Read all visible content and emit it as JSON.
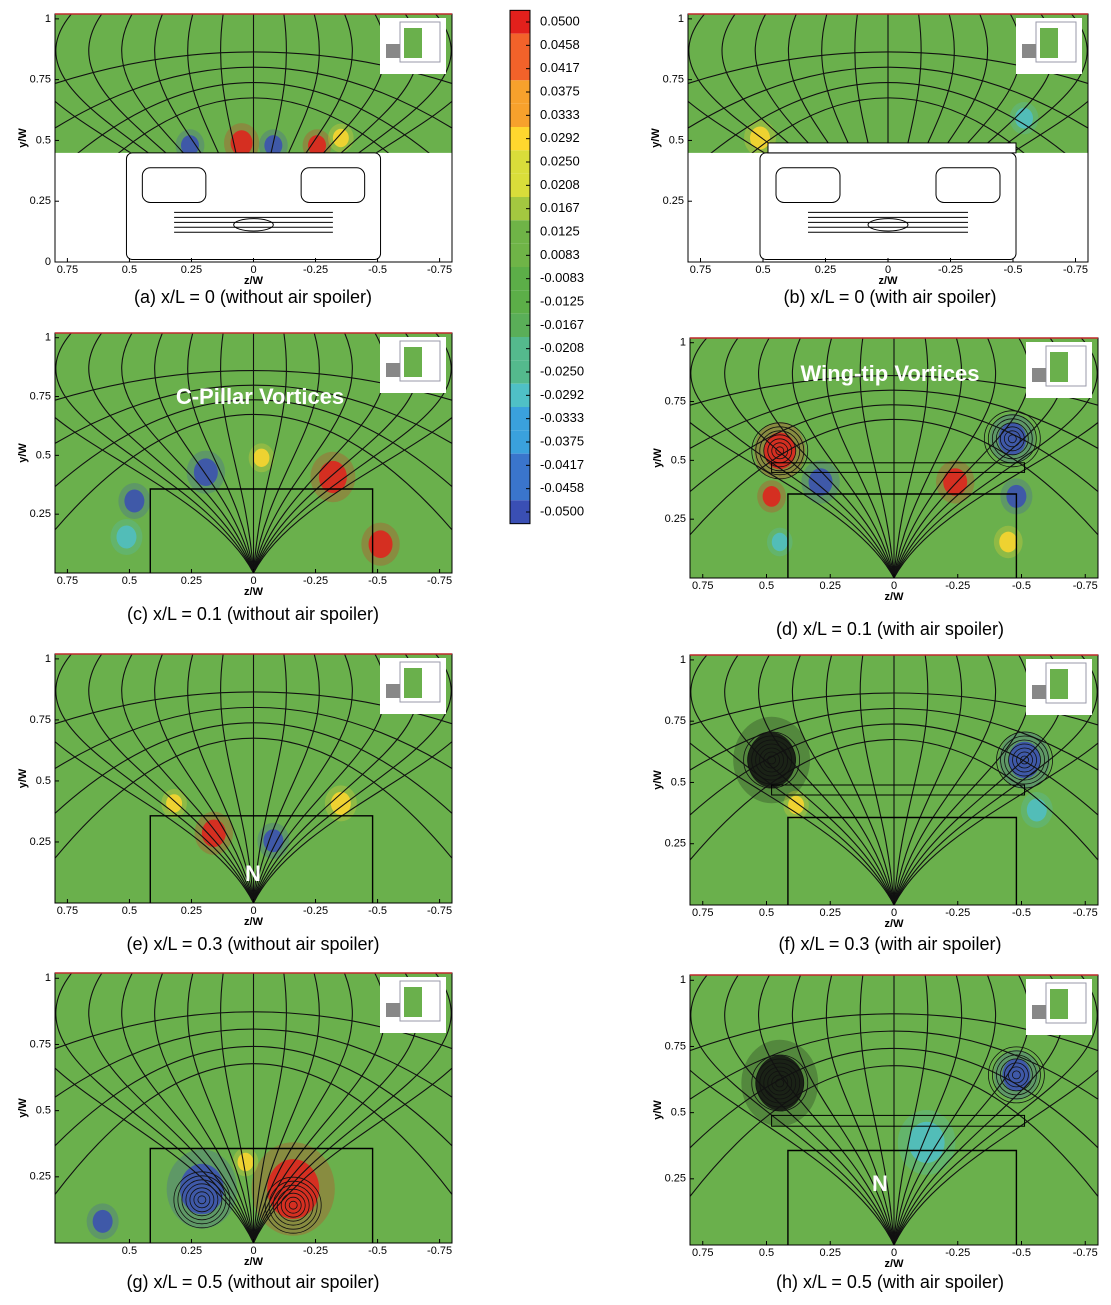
{
  "colorbar": {
    "levels": [
      {
        "value": 0.05,
        "label": "0.0500"
      },
      0.0458,
      0.0417,
      0.0375,
      0.0333,
      0.0292,
      {
        "value": 0.025,
        "label": "0.0250"
      },
      0.0208,
      0.0167,
      0.0125,
      0.0083,
      -0.0083,
      -0.0125,
      -0.0167,
      -0.0208,
      {
        "value": -0.025,
        "label": "-0.0250"
      },
      -0.0292,
      -0.0333,
      -0.0375,
      -0.0417,
      -0.0458,
      {
        "value": -0.05,
        "label": "-0.0500"
      }
    ],
    "colormap": [
      "#e2201c",
      "#f2622a",
      "#f7a12c",
      "#ffd72e",
      "#d9dd3a",
      "#a3c840",
      "#6fb447",
      "#5cae48",
      "#5aae58",
      "#54b98d",
      "#4fc0c6",
      "#3aa1dd",
      "#3a75cc",
      "#3a4fb4"
    ]
  },
  "panels": [
    {
      "caption": "(a) x/L = 0 (without air spoiler)",
      "xlabel": "z/W",
      "ylabel": "y/W",
      "xlim": [
        0.8,
        -0.8
      ],
      "ylim": [
        0,
        1.02
      ],
      "xticks": [
        0.75,
        0.5,
        0.25,
        0,
        -0.25,
        -0.5,
        -0.75
      ],
      "yticks": [
        0,
        0.25,
        0.5,
        0.75,
        1
      ],
      "annotations": []
    },
    {
      "caption": "(b) x/L = 0 (with air spoiler)",
      "xlabel": "z/W",
      "ylabel": "y/W",
      "xlim": [
        0.8,
        -0.8
      ],
      "ylim": [
        0,
        1.02
      ],
      "xticks": [
        0.75,
        0.5,
        0.25,
        0,
        -0.25,
        -0.5,
        -0.75
      ],
      "yticks": [
        0.25,
        0.5,
        0.75,
        1
      ],
      "annotations": []
    },
    {
      "caption": "(c) x/L = 0.1 (without air spoiler)",
      "xlabel": "z/W",
      "ylabel": "y/W",
      "xlim": [
        0.8,
        -0.8
      ],
      "ylim": [
        0,
        1.02
      ],
      "xticks": [
        0.75,
        0.5,
        0.25,
        0,
        -0.25,
        -0.5,
        -0.75
      ],
      "yticks": [
        0.25,
        0.5,
        0.75,
        1
      ],
      "annotations": [
        "C-Pillar Vortices"
      ]
    },
    {
      "caption": "(d) x/L = 0.1 (with air spoiler)",
      "xlabel": "z/W",
      "ylabel": "y/W",
      "xlim": [
        0.8,
        -0.8
      ],
      "ylim": [
        0,
        1.02
      ],
      "xticks": [
        0.75,
        0.5,
        0.25,
        0,
        -0.25,
        -0.5,
        -0.75
      ],
      "yticks": [
        0.25,
        0.5,
        0.75,
        1
      ],
      "annotations": [
        "Wing-tip Vortices"
      ]
    },
    {
      "caption": "(e) x/L = 0.3 (without air spoiler)",
      "xlabel": "z/W",
      "ylabel": "y/W",
      "xlim": [
        0.8,
        -0.8
      ],
      "ylim": [
        0,
        1.02
      ],
      "xticks": [
        0.75,
        0.5,
        0.25,
        0,
        -0.25,
        -0.5,
        -0.75
      ],
      "yticks": [
        0.25,
        0.5,
        0.75,
        1
      ],
      "annotations": [
        "N"
      ]
    },
    {
      "caption": "(f) x/L = 0.3 (with air spoiler)",
      "xlabel": "z/W",
      "ylabel": "y/W",
      "xlim": [
        0.8,
        -0.8
      ],
      "ylim": [
        0,
        1.02
      ],
      "xticks": [
        0.75,
        0.5,
        0.25,
        0,
        -0.25,
        -0.5,
        -0.75
      ],
      "yticks": [
        0.25,
        0.5,
        0.75,
        1
      ],
      "annotations": []
    },
    {
      "caption": "(g) x/L = 0.5 (without air spoiler)",
      "xlabel": "z/W",
      "ylabel": "y/W",
      "xlim": [
        0.8,
        -0.8
      ],
      "ylim": [
        0,
        1.02
      ],
      "xticks": [
        0.5,
        0.25,
        0,
        -0.25,
        -0.5,
        -0.75
      ],
      "yticks": [
        0.25,
        0.5,
        0.75,
        1
      ],
      "annotations": []
    },
    {
      "caption": "(h) x/L = 0.5 (with air spoiler)",
      "xlabel": "z/W",
      "ylabel": "y/W",
      "xlim": [
        0.8,
        -0.8
      ],
      "ylim": [
        0,
        1.02
      ],
      "xticks": [
        0.75,
        0.5,
        0.25,
        0,
        -0.25,
        -0.5,
        -0.75
      ],
      "yticks": [
        0.25,
        0.5,
        0.75,
        1
      ],
      "annotations": [
        "N"
      ]
    }
  ]
}
